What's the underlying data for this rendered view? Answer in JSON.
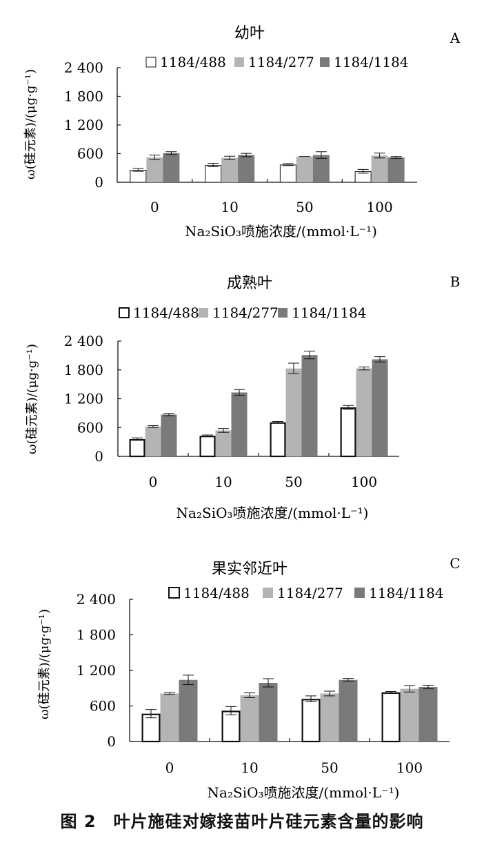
{
  "figure_caption": "图 2　叶片施硅对嫁接苗叶片硅元素含量的影响",
  "colors": {
    "1184/488": "#ffffff",
    "1184/277": "#b4b4b4",
    "1184/1184": "#7a7a7a",
    "outline": "#111111"
  },
  "chart_data": [
    {
      "type": "bar",
      "panel_label": "A",
      "title": "幼叶",
      "ylabel": "ω(硅元素)/(μg·g⁻¹)",
      "xlabel": "Na₂SiO₃喷施浓度/(mmol·L⁻¹)",
      "categories": [
        "0",
        "10",
        "50",
        "100"
      ],
      "yticks": [
        "0",
        "600",
        "1 200",
        "1 800",
        "2 400"
      ],
      "ylim": [
        0,
        2400
      ],
      "legend_position": "top",
      "series": [
        {
          "name": "1184/488",
          "values": [
            260,
            360,
            370,
            230
          ],
          "errors": [
            30,
            35,
            20,
            40
          ]
        },
        {
          "name": "1184/277",
          "values": [
            520,
            510,
            540,
            560
          ],
          "errors": [
            50,
            35,
            0,
            50
          ]
        },
        {
          "name": "1184/1184",
          "values": [
            610,
            570,
            570,
            520
          ],
          "errors": [
            30,
            35,
            70,
            20
          ]
        }
      ]
    },
    {
      "type": "bar",
      "panel_label": "B",
      "title": "成熟叶",
      "ylabel": "ω(硅元素)/(μg·g⁻¹)",
      "xlabel": "Na₂SiO₃喷施浓度/(mmol·L⁻¹)",
      "categories": [
        "0",
        "10",
        "50",
        "100"
      ],
      "yticks": [
        "0",
        "600",
        "1 200",
        "1 800",
        "2 400"
      ],
      "ylim": [
        0,
        2400
      ],
      "legend_position": "top",
      "series": [
        {
          "name": "1184/488",
          "values": [
            360,
            430,
            710,
            1020
          ],
          "errors": [
            25,
            15,
            15,
            40
          ]
        },
        {
          "name": "1184/277",
          "values": [
            620,
            540,
            1830,
            1830
          ],
          "errors": [
            20,
            40,
            110,
            30
          ]
        },
        {
          "name": "1184/1184",
          "values": [
            870,
            1330,
            2110,
            2020
          ],
          "errors": [
            25,
            60,
            80,
            55
          ]
        }
      ]
    },
    {
      "type": "bar",
      "panel_label": "C",
      "title": "果实邻近叶",
      "ylabel": "ω(硅元素)/(μg·g⁻¹)",
      "xlabel": "Na₂SiO₃喷施浓度/(mmol·L⁻¹)",
      "categories": [
        "0",
        "10",
        "50",
        "100"
      ],
      "yticks": [
        "0",
        "600",
        "1 200",
        "1 800",
        "2 400"
      ],
      "ylim": [
        0,
        2400
      ],
      "legend_position": "top",
      "series": [
        {
          "name": "1184/488",
          "values": [
            470,
            520,
            720,
            830
          ],
          "errors": [
            70,
            70,
            50,
            15
          ]
        },
        {
          "name": "1184/277",
          "values": [
            810,
            780,
            810,
            890
          ],
          "errors": [
            15,
            40,
            40,
            55
          ]
        },
        {
          "name": "1184/1184",
          "values": [
            1040,
            990,
            1040,
            920
          ],
          "errors": [
            80,
            70,
            25,
            30
          ]
        }
      ]
    }
  ]
}
